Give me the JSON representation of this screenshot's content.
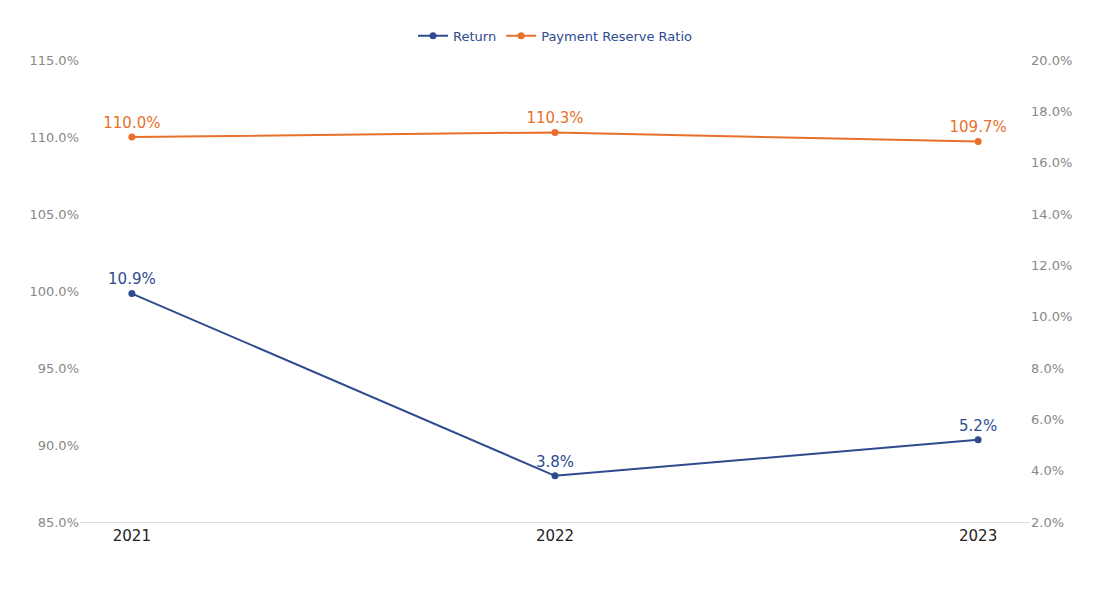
{
  "chart_data": {
    "type": "line",
    "categories": [
      "2021",
      "2022",
      "2023"
    ],
    "series": [
      {
        "name": "Return",
        "color": "#2e4b8f",
        "values": [
          10.9,
          3.8,
          5.2
        ],
        "value_labels": [
          "10.9%",
          "3.8%",
          "5.2%"
        ],
        "axis": "y2",
        "marker": "circle"
      },
      {
        "name": "Payment Reserve Ratio",
        "color": "#e8702a",
        "values": [
          110.0,
          110.3,
          109.7
        ],
        "value_labels": [
          "110.0%",
          "110.3%",
          "109.7%"
        ],
        "marker": "circle"
      }
    ],
    "ylim": [
      85,
      115
    ],
    "yticks": [
      {
        "value": 85,
        "label": "85.0%"
      },
      {
        "value": 90,
        "label": "90.0%"
      },
      {
        "value": 95,
        "label": "95.0%"
      },
      {
        "value": 100,
        "label": "100.0%"
      },
      {
        "value": 105,
        "label": "105.0%"
      },
      {
        "value": 110,
        "label": "110.0%"
      },
      {
        "value": 115,
        "label": "115.0%"
      }
    ],
    "y2lim": [
      2,
      20
    ],
    "y2ticks": [
      {
        "value": 2,
        "label": "2.0%"
      },
      {
        "value": 4,
        "label": "4.0%"
      },
      {
        "value": 6,
        "label": "6.0%"
      },
      {
        "value": 8,
        "label": "8.0%"
      },
      {
        "value": 10,
        "label": "10.0%"
      },
      {
        "value": 12,
        "label": "12.0%"
      },
      {
        "value": 14,
        "label": "14.0%"
      },
      {
        "value": 16,
        "label": "16.0%"
      },
      {
        "value": 18,
        "label": "18.0%"
      },
      {
        "value": 20,
        "label": "20.0%"
      }
    ],
    "grid": false,
    "legend": "top",
    "data_labels": true
  }
}
